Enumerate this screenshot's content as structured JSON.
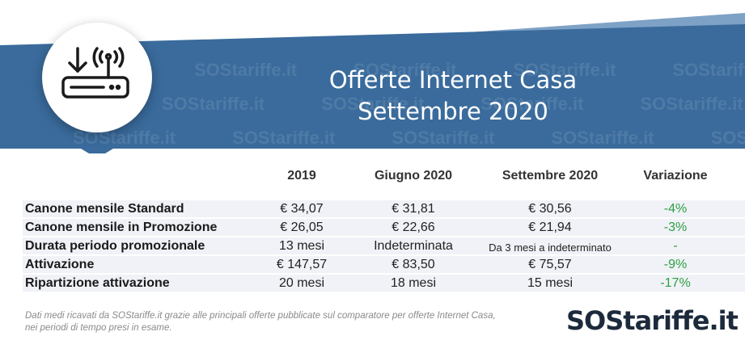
{
  "header": {
    "title_line1": "Offerte Internet Casa",
    "title_line2": "Settembre 2020",
    "watermark_text": "SOStariffe.it",
    "colors": {
      "band": "#3a6b9c",
      "band_light": "#7ea1c6",
      "icon_stroke": "#1a1a1a"
    },
    "icon": "router-download-icon"
  },
  "table": {
    "columns": [
      "2019",
      "Giugno 2020",
      "Settembre 2020",
      "Variazione"
    ],
    "rows": [
      {
        "label": "Canone mensile Standard",
        "v2019": "€ 34,07",
        "giugno": "€ 31,81",
        "settembre": "€ 30,56",
        "variazione": "-4%"
      },
      {
        "label": "Canone mensile in Promozione",
        "v2019": "€ 26,05",
        "giugno": "€ 22,66",
        "settembre": "€ 21,94",
        "variazione": "-3%"
      },
      {
        "label": "Durata periodo promozionale",
        "v2019": "13 mesi",
        "giugno": "Indeterminata",
        "settembre": "Da 3 mesi a indeterminato",
        "variazione": "-"
      },
      {
        "label": "Attivazione",
        "v2019": "€ 147,57",
        "giugno": "€ 83,50",
        "settembre": "€ 75,57",
        "variazione": "-9%"
      },
      {
        "label": "Ripartizione attivazione",
        "v2019": "20 mesi",
        "giugno": "18 mesi",
        "settembre": "15 mesi",
        "variazione": "-17%"
      }
    ],
    "colors": {
      "variation": "#2ea043",
      "row_shade": "#f0f2f7"
    }
  },
  "footer": {
    "note": "Dati medi ricavati da SOStariffe.it grazie alle principali offerte pubblicate sul comparatore per offerte Internet Casa, nei periodi di tempo presi in esame.",
    "logo_text": "SOStariffe.it",
    "logo_accent": "#f7a400"
  }
}
